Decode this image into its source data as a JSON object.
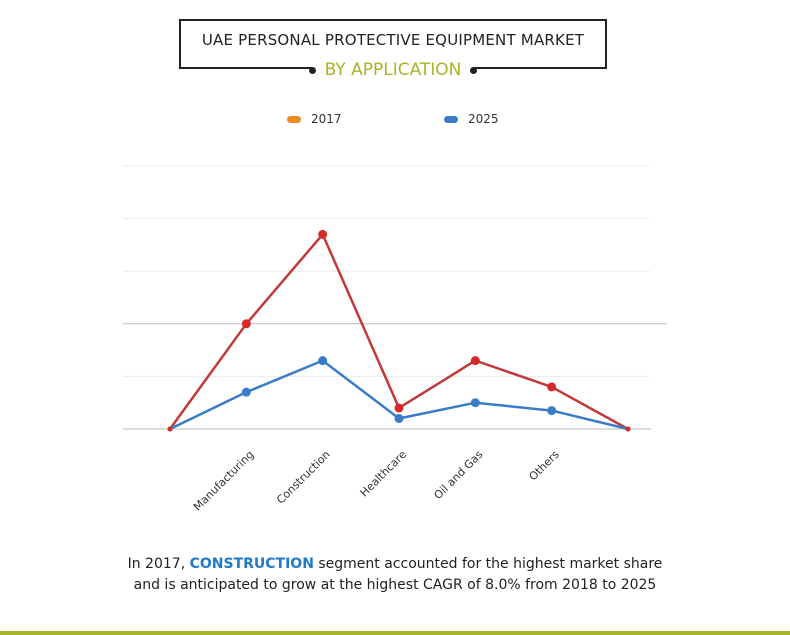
{
  "header": {
    "title": "UAE PERSONAL PROTECTIVE EQUIPMENT MARKET",
    "subtitle": "BY APPLICATION"
  },
  "colors": {
    "series_2017_legend": "#f08a24",
    "series_2017_line": "#c0393b",
    "series_2017_point": "#d42a2a",
    "series_2025": "#3a7cc8",
    "accent": "#a8b428",
    "highlight": "#1f7ac8"
  },
  "chart_data": {
    "type": "line",
    "categories": [
      "",
      "Manufacturing",
      "Construction",
      "Healthcare",
      "Oil and Gas",
      "Others",
      ""
    ],
    "series": [
      {
        "name": "2017",
        "values": [
          0,
          20,
          37,
          4,
          13,
          8,
          0
        ]
      },
      {
        "name": "2025",
        "values": [
          0,
          7,
          13,
          2,
          5,
          3.5,
          0
        ]
      }
    ],
    "ylim": [
      0,
      50
    ],
    "grid": true,
    "legend": "top"
  },
  "footer": {
    "line1_pre": "In 2017, ",
    "line1_highlight": "CONSTRUCTION",
    "line1_post": " segment accounted for the highest market share",
    "line2": "and is anticipated to grow at the highest CAGR of 8.0% from 2018 to 2025"
  }
}
